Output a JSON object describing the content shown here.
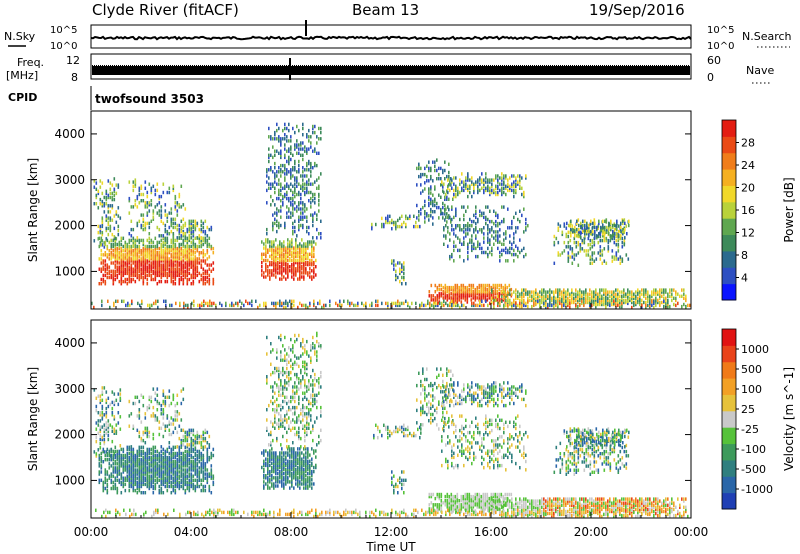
{
  "header": {
    "title": "Clyde River (fitACF)",
    "beam": "Beam 13",
    "date": "19/Sep/2016"
  },
  "panels": {
    "nsky_label": "N.Sky",
    "nsearch_label": "N.Search",
    "noise_left_ticks": [
      "10^5",
      "10^0"
    ],
    "noise_right_ticks": [
      "10^5",
      "10^0"
    ],
    "freq_label_1": "Freq.",
    "freq_label_2": "[MHz]",
    "freq_ticks": [
      "12",
      "8"
    ],
    "nave_label": "Nave",
    "nave_ticks": [
      "60",
      "0"
    ],
    "cpid_label": "CPID",
    "cpid_value": "twofsound 3503"
  },
  "chart_data": [
    {
      "type": "heatmap",
      "name": "power",
      "ylabel": "Slant Range [km]",
      "yticks": [
        1000,
        2000,
        3000,
        4000
      ],
      "ylim": [
        180,
        4500
      ],
      "xlim": [
        0,
        24
      ],
      "colorbar": {
        "label": "Power [dB]",
        "ticks": [
          "4",
          "8",
          "12",
          "16",
          "20",
          "24",
          "28"
        ],
        "colors": [
          "#0a14ff",
          "#2d4fc2",
          "#2b6a8e",
          "#3d8a5a",
          "#5fa750",
          "#b9d23a",
          "#f1d82a",
          "#f5b021",
          "#f07d1a",
          "#ea4a15",
          "#e31d12"
        ]
      }
    },
    {
      "type": "heatmap",
      "name": "velocity",
      "ylabel": "Slant Range [km]",
      "yticks": [
        1000,
        2000,
        3000,
        4000
      ],
      "ylim": [
        180,
        4500
      ],
      "xlim": [
        0,
        24
      ],
      "xlabel": "Time UT",
      "xticks": [
        "00:00",
        "04:00",
        "08:00",
        "12:00",
        "16:00",
        "20:00",
        "00:00"
      ],
      "colorbar": {
        "label": "Velocity [m s^-1]",
        "ticks": [
          "1000",
          "500",
          "100",
          "25",
          "-25",
          "-100",
          "-500",
          "-1000"
        ],
        "colors": [
          "#1f3fb4",
          "#2a66a8",
          "#2f7f7f",
          "#3d9a5b",
          "#56c23a",
          "#c9c9c9",
          "#e6c23b",
          "#f2a025",
          "#f07a18",
          "#e9431a",
          "#e11313"
        ]
      }
    }
  ]
}
